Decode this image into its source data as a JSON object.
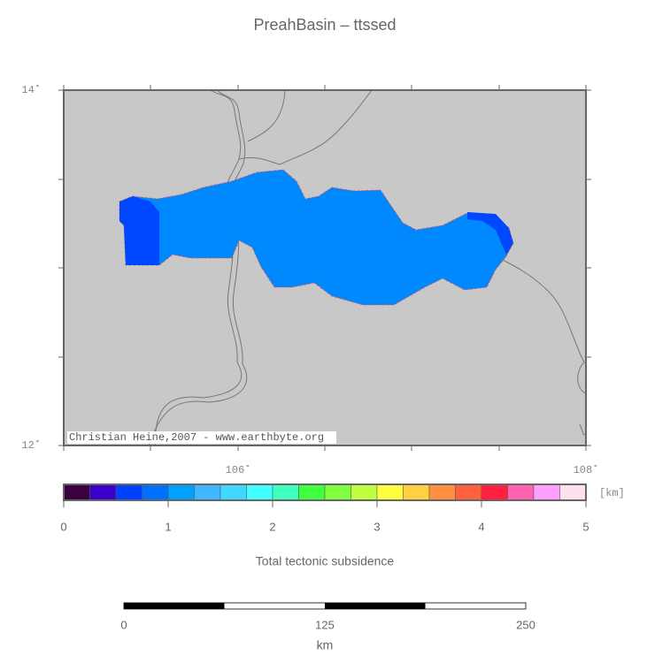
{
  "header": {
    "title": "PreahBasin – ttssed"
  },
  "map": {
    "lat_labels": [
      "14˚",
      "12˚"
    ],
    "lon_labels": [
      "106˚",
      "108˚"
    ],
    "credit": "Christian Heine,2007 - www.earthbyte.org"
  },
  "colorbar": {
    "colors": [
      "#3a0040",
      "#3a00c8",
      "#0040ff",
      "#0070ff",
      "#00a0ff",
      "#40b8ff",
      "#40d8ff",
      "#40ffff",
      "#40ffc0",
      "#40ff40",
      "#80ff40",
      "#c0ff40",
      "#ffff40",
      "#ffd040",
      "#ff9040",
      "#ff6040",
      "#ff2040",
      "#ff60b0",
      "#ffa0ff",
      "#ffe0f0"
    ],
    "ticks": [
      "0",
      "1",
      "2",
      "3",
      "4",
      "5"
    ],
    "unit": "[km]",
    "label": "Total tectonic subsidence"
  },
  "scalebar": {
    "ticks": [
      "0",
      "125",
      "250"
    ],
    "unit": "km"
  }
}
